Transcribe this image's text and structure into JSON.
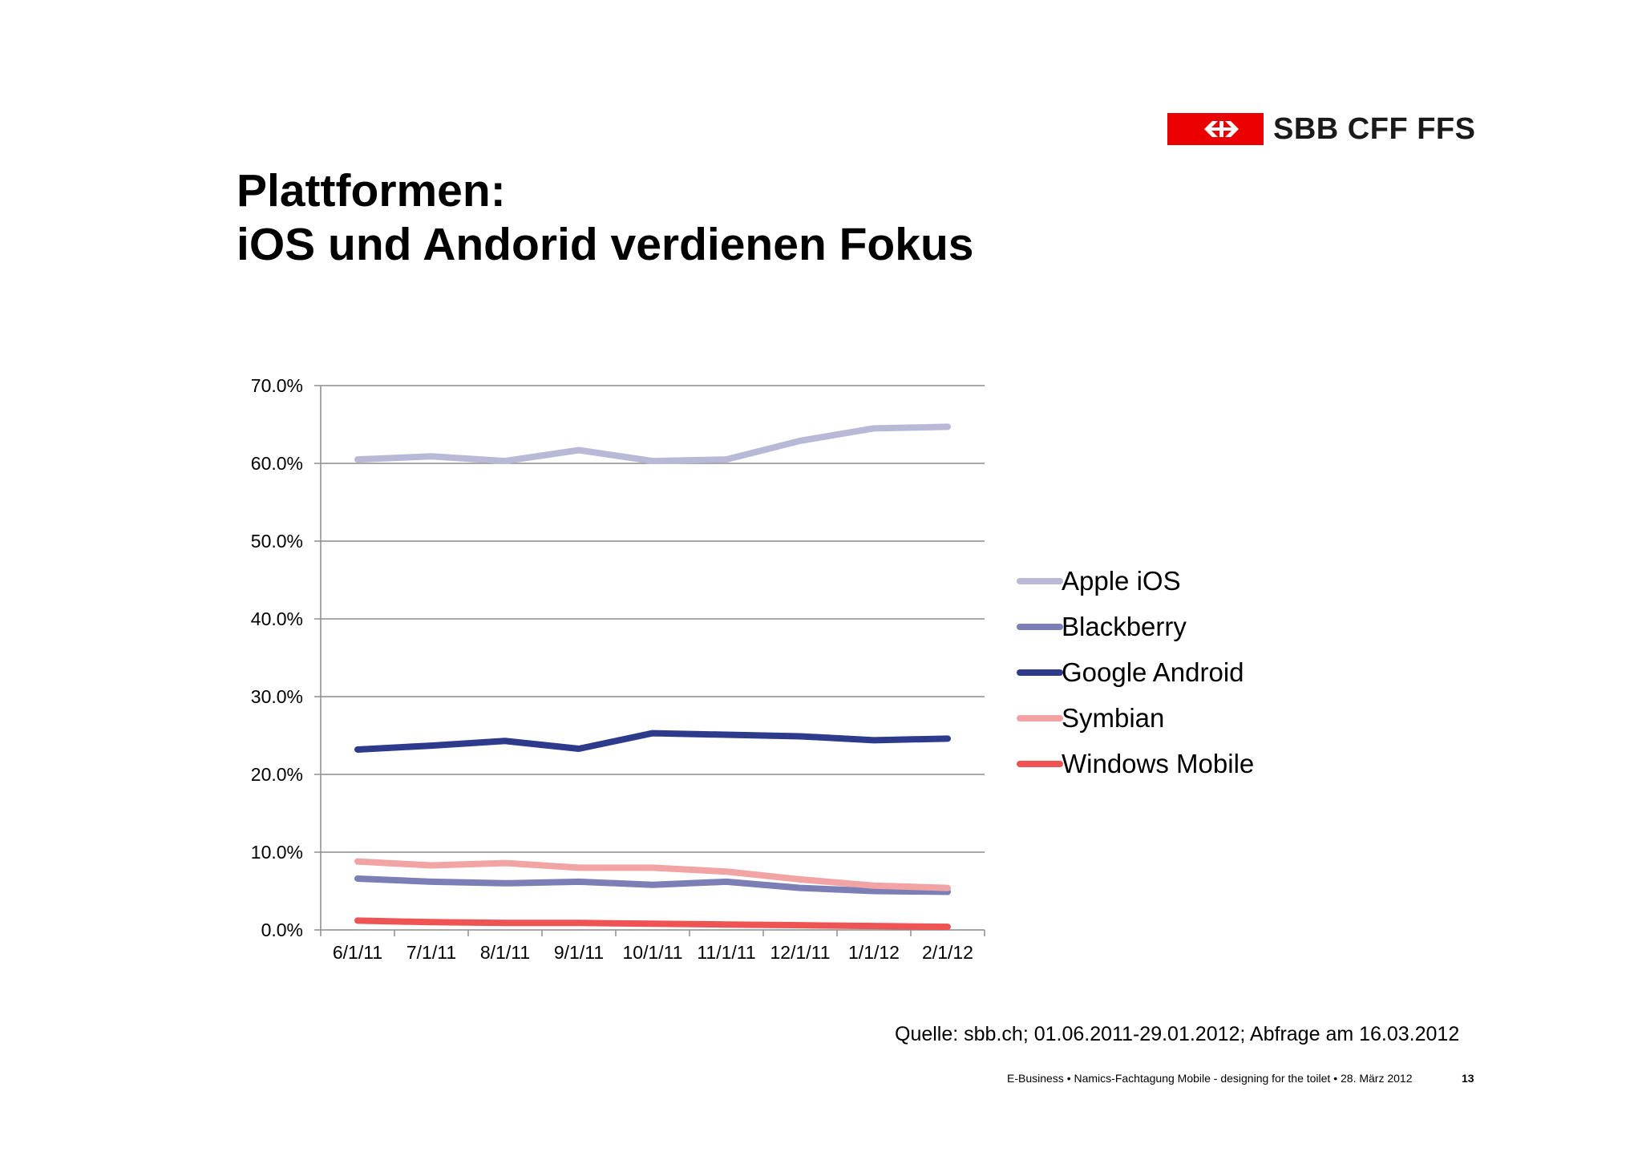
{
  "logo": {
    "text": "SBB CFF FFS",
    "flag_color": "#eb0000"
  },
  "title": {
    "line1": "Plattformen:",
    "line2": "iOS und Andorid verdienen Fokus"
  },
  "chart_data": {
    "type": "line",
    "title": "",
    "xlabel": "",
    "ylabel": "",
    "categories": [
      "6/1/11",
      "7/1/11",
      "8/1/11",
      "9/1/11",
      "10/1/11",
      "11/1/11",
      "12/1/11",
      "1/1/12",
      "2/1/12"
    ],
    "y_ticks": [
      "0.0%",
      "10.0%",
      "20.0%",
      "30.0%",
      "40.0%",
      "50.0%",
      "60.0%",
      "70.0%"
    ],
    "ylim": [
      0,
      70
    ],
    "grid": true,
    "legend_position": "right",
    "series": [
      {
        "name": "Apple iOS",
        "color": "#b8b9d6",
        "values": [
          60.5,
          60.9,
          60.3,
          61.7,
          60.3,
          60.5,
          62.9,
          64.5,
          64.7
        ]
      },
      {
        "name": "Blackberry",
        "color": "#7b7fb6",
        "values": [
          6.6,
          6.2,
          6.0,
          6.2,
          5.8,
          6.2,
          5.4,
          5.0,
          4.9
        ]
      },
      {
        "name": "Google Android",
        "color": "#2e3a8c",
        "values": [
          23.2,
          23.7,
          24.3,
          23.3,
          25.3,
          25.1,
          24.9,
          24.4,
          24.6
        ]
      },
      {
        "name": "Symbian",
        "color": "#f2a3a3",
        "values": [
          8.8,
          8.3,
          8.6,
          8.0,
          8.0,
          7.5,
          6.5,
          5.7,
          5.4
        ]
      },
      {
        "name": "Windows Mobile",
        "color": "#ee5454",
        "values": [
          1.2,
          1.0,
          0.9,
          0.9,
          0.8,
          0.7,
          0.6,
          0.5,
          0.4
        ]
      }
    ]
  },
  "source": "Quelle: sbb.ch; 01.06.2011-29.01.2012; Abfrage am 16.03.2012",
  "footer": {
    "text": "E-Business • Namics-Fachtagung Mobile - designing for the toilet • 28. März 2012",
    "page": "13"
  }
}
